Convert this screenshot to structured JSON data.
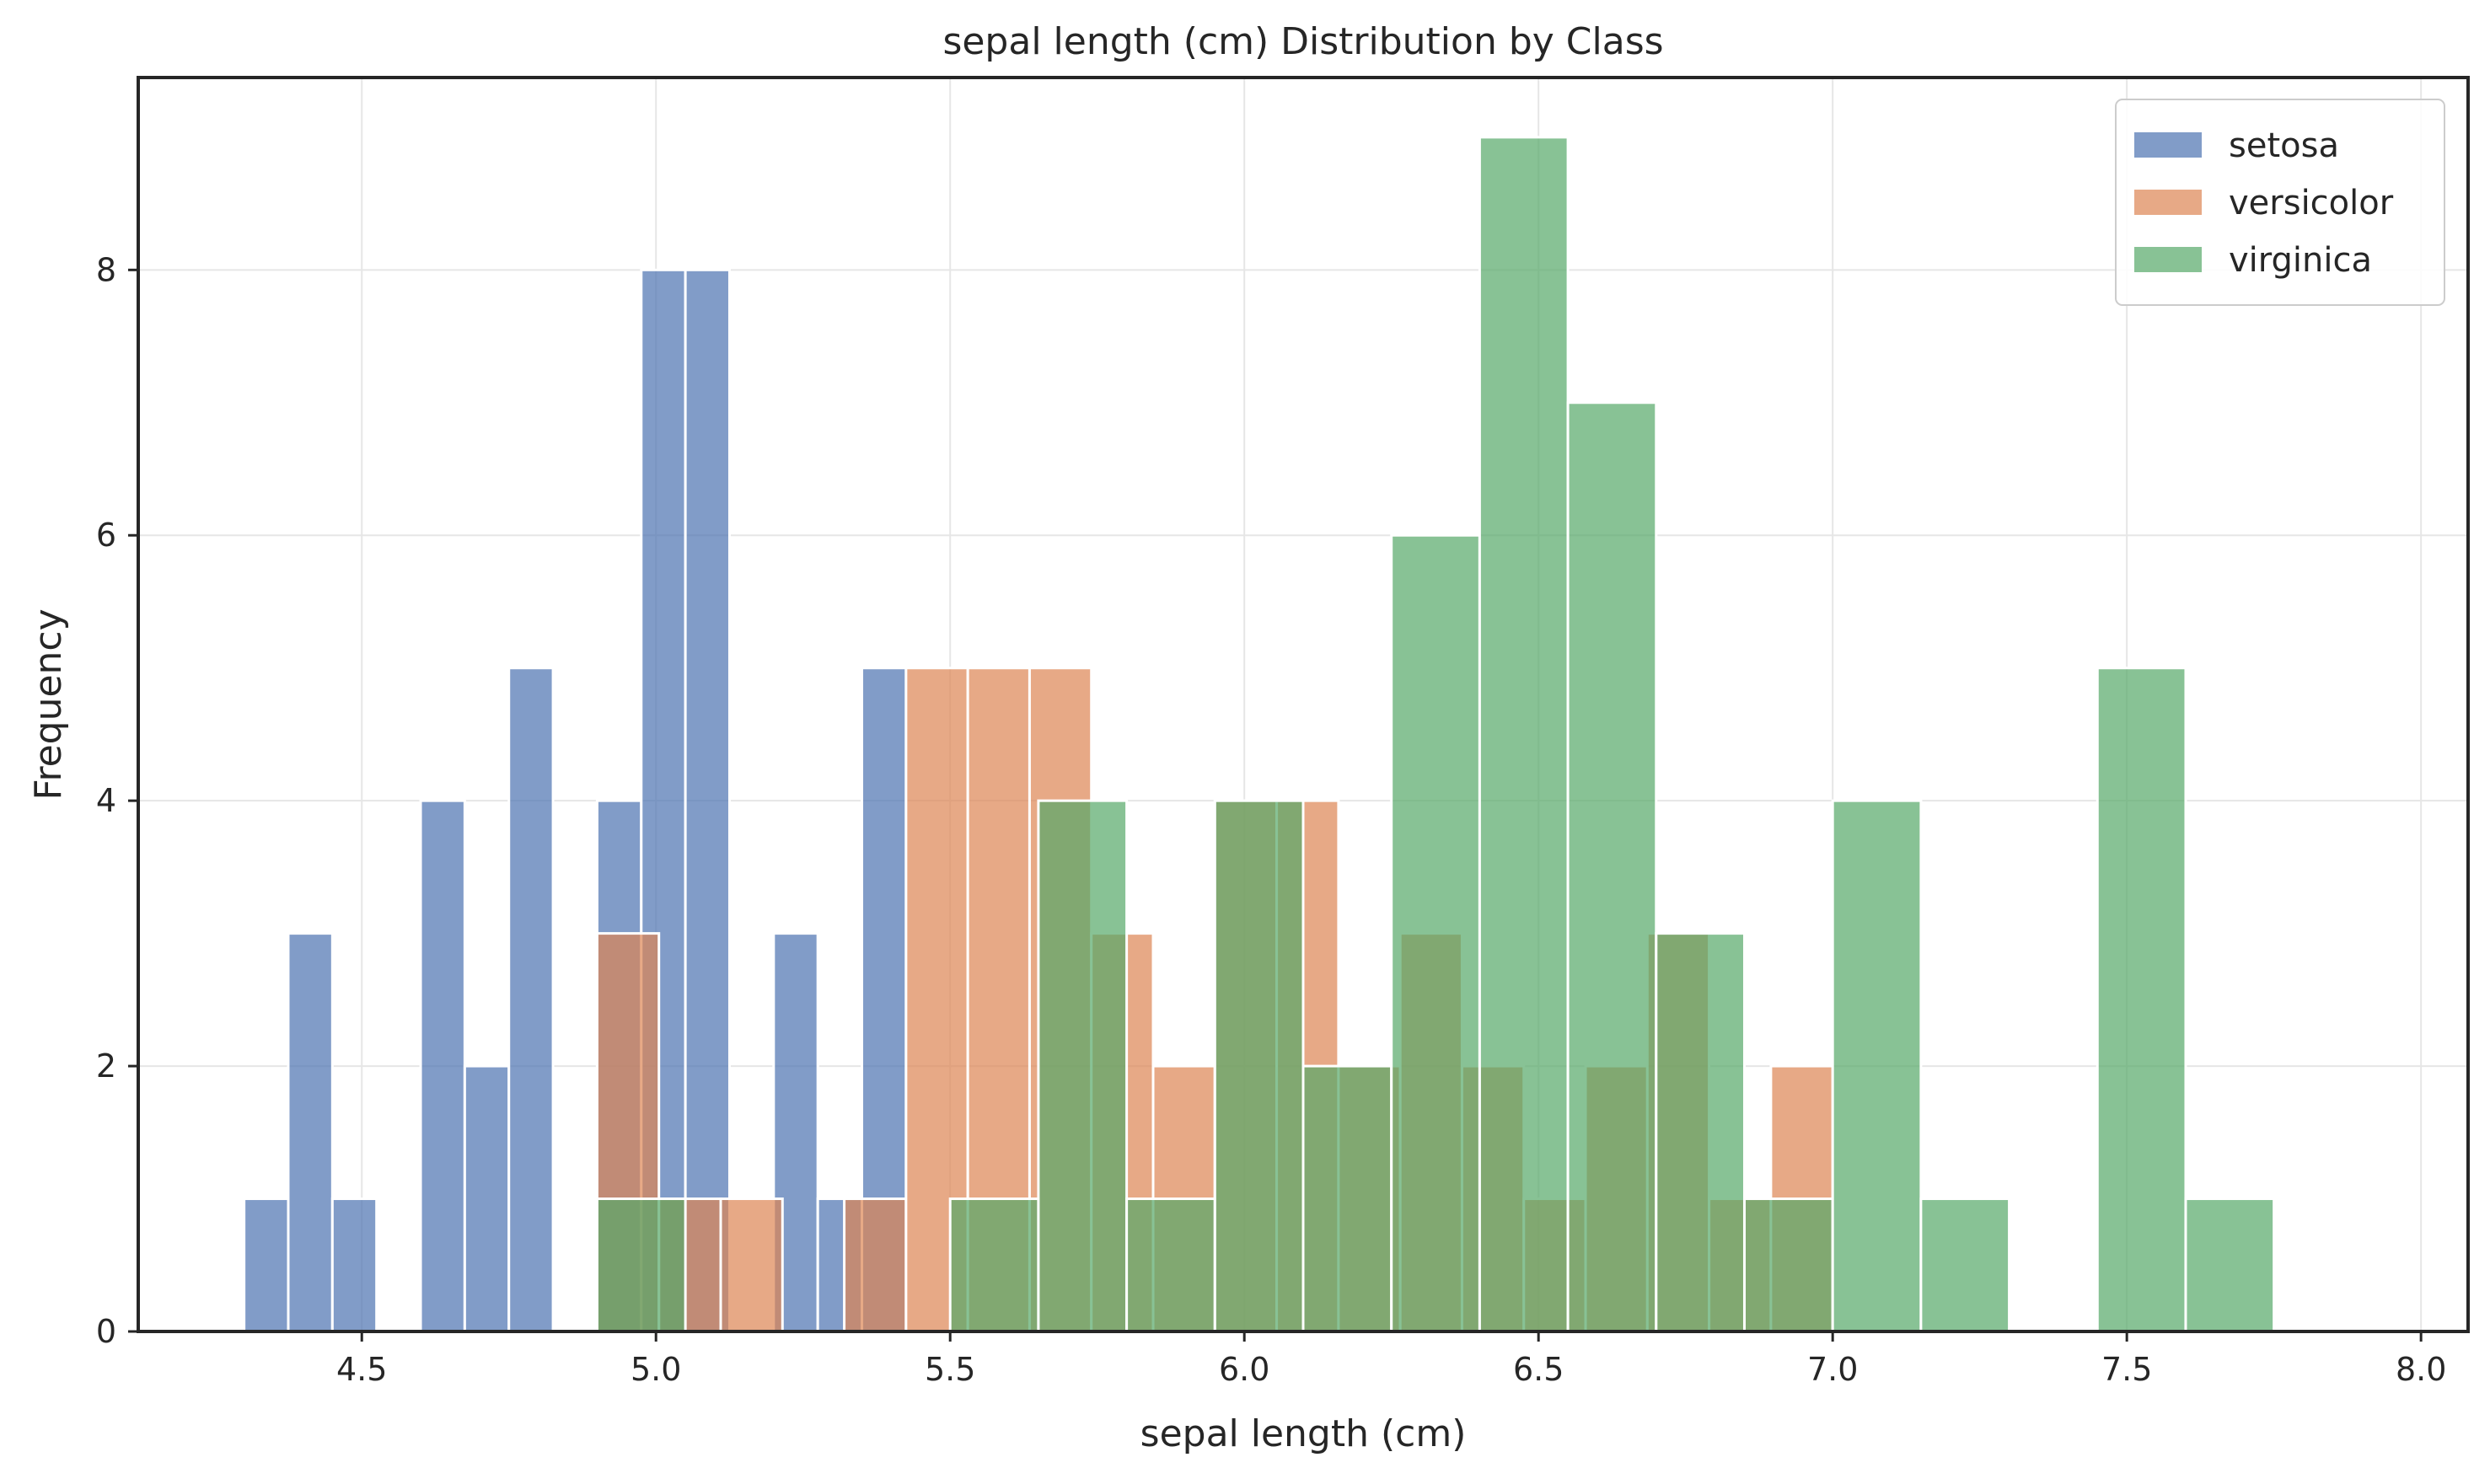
{
  "chart_data": {
    "type": "bar",
    "subtype": "overlapping-histogram",
    "title": "sepal length (cm) Distribution by Class",
    "xlabel": "sepal length (cm)",
    "ylabel": "Frequency",
    "xlim": [
      4.12,
      8.08
    ],
    "ylim": [
      0,
      9.45
    ],
    "xticks": [
      4.5,
      5.0,
      5.5,
      6.0,
      6.5,
      7.0,
      7.5,
      8.0
    ],
    "xtick_labels": [
      "4.5",
      "5.0",
      "5.5",
      "6.0",
      "6.5",
      "7.0",
      "7.5",
      "8.0"
    ],
    "yticks": [
      0,
      2,
      4,
      6,
      8
    ],
    "ytick_labels": [
      "0",
      "2",
      "4",
      "6",
      "8"
    ],
    "grid": true,
    "legend_position": "top-right",
    "series": [
      {
        "name": "setosa",
        "color": "#4c72b0",
        "bin_start": 4.3,
        "bin_width": 0.075,
        "counts": [
          1,
          3,
          1,
          0,
          4,
          2,
          5,
          0,
          4,
          8,
          8,
          0,
          3,
          1,
          5,
          0,
          0,
          0,
          0,
          0
        ]
      },
      {
        "name": "versicolor",
        "color": "#dd8452",
        "bin_start": 4.9,
        "bin_width": 0.105,
        "counts": [
          3,
          1,
          1,
          0,
          1,
          5,
          5,
          5,
          3,
          2,
          4,
          4,
          2,
          3,
          2,
          1,
          2,
          3,
          1,
          2
        ]
      },
      {
        "name": "virginica",
        "color": "#55a868",
        "bin_start": 4.9,
        "bin_width": 0.15,
        "counts": [
          1,
          0,
          0,
          0,
          1,
          4,
          1,
          4,
          2,
          6,
          9,
          7,
          3,
          1,
          4,
          1,
          0,
          5,
          1
        ]
      }
    ]
  }
}
